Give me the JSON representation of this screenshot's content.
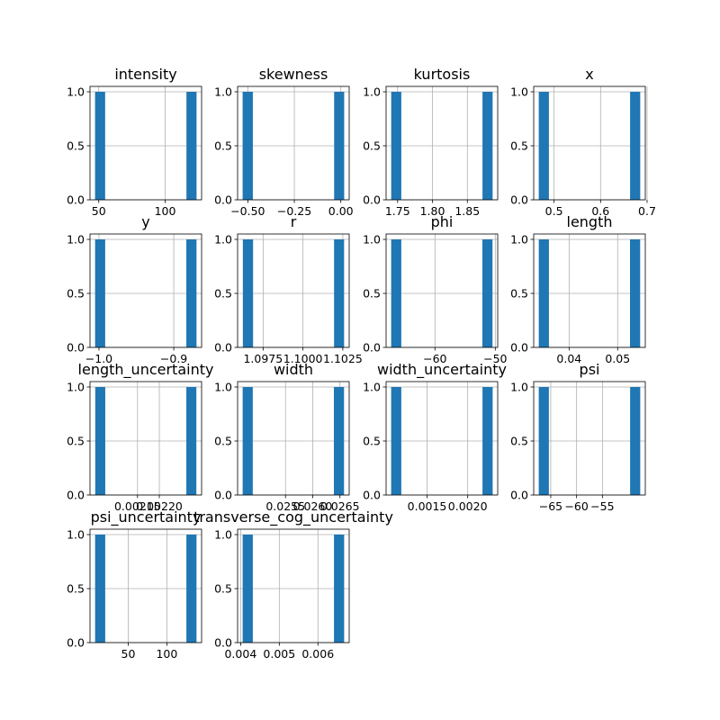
{
  "figure": {
    "background": "#ffffff",
    "bar_color": "#1f77b4",
    "grid_color": "#b0b0b0"
  },
  "chart_data": [
    {
      "type": "bar",
      "title": "intensity",
      "grid": true,
      "xlim": [
        43.4,
        127.4
      ],
      "ylim": [
        0,
        1.05
      ],
      "x_ticks": [
        {
          "value": 50,
          "label": "50"
        },
        {
          "value": 100,
          "label": "100"
        }
      ],
      "y_ticks": [
        {
          "value": 0,
          "label": "0.0"
        },
        {
          "value": 0.5,
          "label": "0.5"
        },
        {
          "value": 1,
          "label": "1.0"
        }
      ],
      "bins": [
        {
          "x0": 47.2,
          "x1": 54.8,
          "count": 1
        },
        {
          "x0": 116.0,
          "x1": 123.6,
          "count": 1
        }
      ]
    },
    {
      "type": "bar",
      "title": "skewness",
      "grid": true,
      "xlim": [
        -0.555,
        0.045
      ],
      "ylim": [
        0,
        1.05
      ],
      "x_ticks": [
        {
          "value": -0.5,
          "label": "−0.50"
        },
        {
          "value": -0.25,
          "label": "−0.25"
        },
        {
          "value": 0,
          "label": "0.00"
        }
      ],
      "y_ticks": [
        {
          "value": 0,
          "label": "0.0"
        },
        {
          "value": 0.5,
          "label": "0.5"
        },
        {
          "value": 1,
          "label": "1.0"
        }
      ],
      "bins": [
        {
          "x0": -0.528,
          "x1": -0.473,
          "count": 1
        },
        {
          "x0": -0.036,
          "x1": 0.018,
          "count": 1
        }
      ]
    },
    {
      "type": "bar",
      "title": "kurtosis",
      "grid": true,
      "xlim": [
        1.7335,
        1.8935
      ],
      "ylim": [
        0,
        1.05
      ],
      "x_ticks": [
        {
          "value": 1.75,
          "label": "1.75"
        },
        {
          "value": 1.8,
          "label": "1.80"
        },
        {
          "value": 1.85,
          "label": "1.85"
        }
      ],
      "y_ticks": [
        {
          "value": 0,
          "label": "0.0"
        },
        {
          "value": 0.5,
          "label": "0.5"
        },
        {
          "value": 1,
          "label": "1.0"
        }
      ],
      "bins": [
        {
          "x0": 1.7408,
          "x1": 1.7553,
          "count": 1
        },
        {
          "x0": 1.8717,
          "x1": 1.8862,
          "count": 1
        }
      ]
    },
    {
      "type": "bar",
      "title": "x",
      "grid": true,
      "xlim": [
        0.4562,
        0.6962
      ],
      "ylim": [
        0,
        1.05
      ],
      "x_ticks": [
        {
          "value": 0.5,
          "label": "0.5"
        },
        {
          "value": 0.6,
          "label": "0.6"
        },
        {
          "value": 0.7,
          "label": "0.7"
        }
      ],
      "y_ticks": [
        {
          "value": 0,
          "label": "0.0"
        },
        {
          "value": 0.5,
          "label": "0.5"
        },
        {
          "value": 1,
          "label": "1.0"
        }
      ],
      "bins": [
        {
          "x0": 0.4671,
          "x1": 0.4889,
          "count": 1
        },
        {
          "x0": 0.6635,
          "x1": 0.6853,
          "count": 1
        }
      ]
    },
    {
      "type": "bar",
      "title": "y",
      "grid": true,
      "xlim": [
        -1.012,
        -0.8628
      ],
      "ylim": [
        0,
        1.05
      ],
      "x_ticks": [
        {
          "value": -1.0,
          "label": "−1.0"
        },
        {
          "value": -0.9,
          "label": "−0.9"
        }
      ],
      "y_ticks": [
        {
          "value": 0,
          "label": "0.0"
        },
        {
          "value": 0.5,
          "label": "0.5"
        },
        {
          "value": 1,
          "label": "1.0"
        }
      ],
      "bins": [
        {
          "x0": -1.0052,
          "x1": -0.9917,
          "count": 1
        },
        {
          "x0": -0.8832,
          "x1": -0.8696,
          "count": 1
        }
      ]
    },
    {
      "type": "bar",
      "title": "r",
      "grid": true,
      "xlim": [
        1.0959,
        1.1029
      ],
      "ylim": [
        0,
        1.05
      ],
      "x_ticks": [
        {
          "value": 1.0975,
          "label": "1.0975"
        },
        {
          "value": 1.1,
          "label": "1.1000"
        },
        {
          "value": 1.1025,
          "label": "1.1025"
        }
      ],
      "y_ticks": [
        {
          "value": 0,
          "label": "0.0"
        },
        {
          "value": 0.5,
          "label": "0.5"
        },
        {
          "value": 1,
          "label": "1.0"
        }
      ],
      "bins": [
        {
          "x0": 1.09623,
          "x1": 1.09687,
          "count": 1
        },
        {
          "x0": 1.10195,
          "x1": 1.10258,
          "count": 1
        }
      ]
    },
    {
      "type": "bar",
      "title": "phi",
      "grid": true,
      "xlim": [
        -68.1,
        -49.6
      ],
      "ylim": [
        0,
        1.05
      ],
      "x_ticks": [
        {
          "value": -60,
          "label": "−60"
        },
        {
          "value": -50,
          "label": "−50"
        }
      ],
      "y_ticks": [
        {
          "value": 0,
          "label": "0.0"
        },
        {
          "value": 0.5,
          "label": "0.5"
        },
        {
          "value": 1,
          "label": "1.0"
        }
      ],
      "bins": [
        {
          "x0": -67.26,
          "x1": -65.58,
          "count": 1
        },
        {
          "x0": -52.14,
          "x1": -50.46,
          "count": 1
        }
      ]
    },
    {
      "type": "bar",
      "title": "length",
      "grid": true,
      "xlim": [
        0.0327,
        0.0557
      ],
      "ylim": [
        0,
        1.05
      ],
      "x_ticks": [
        {
          "value": 0.04,
          "label": "0.04"
        },
        {
          "value": 0.05,
          "label": "0.05"
        }
      ],
      "y_ticks": [
        {
          "value": 0,
          "label": "0.0"
        },
        {
          "value": 0.5,
          "label": "0.5"
        },
        {
          "value": 1,
          "label": "1.0"
        }
      ],
      "bins": [
        {
          "x0": 0.03375,
          "x1": 0.03584,
          "count": 1
        },
        {
          "x0": 0.05255,
          "x1": 0.05464,
          "count": 1
        }
      ]
    },
    {
      "type": "bar",
      "title": "length_uncertainty",
      "grid": true,
      "xlim": [
        0.002041,
        0.002297
      ],
      "ylim": [
        0,
        1.05
      ],
      "x_ticks": [
        {
          "value": 0.00215,
          "label": "0.00215"
        },
        {
          "value": 0.0022,
          "label": "0.00220"
        }
      ],
      "y_ticks": [
        {
          "value": 0,
          "label": "0.0"
        },
        {
          "value": 0.5,
          "label": "0.5"
        },
        {
          "value": 1,
          "label": "1.0"
        }
      ],
      "bins": [
        {
          "x0": 0.002053,
          "x1": 0.002076,
          "count": 1
        },
        {
          "x0": 0.002262,
          "x1": 0.002285,
          "count": 1
        }
      ]
    },
    {
      "type": "bar",
      "title": "width",
      "grid": true,
      "xlim": [
        0.02462,
        0.02667
      ],
      "ylim": [
        0,
        1.05
      ],
      "x_ticks": [
        {
          "value": 0.0255,
          "label": "0.0255"
        },
        {
          "value": 0.026,
          "label": "0.0260"
        },
        {
          "value": 0.0265,
          "label": "0.0265"
        }
      ],
      "y_ticks": [
        {
          "value": 0,
          "label": "0.0"
        },
        {
          "value": 0.5,
          "label": "0.5"
        },
        {
          "value": 1,
          "label": "1.0"
        }
      ],
      "bins": [
        {
          "x0": 0.024713,
          "x1": 0.024899,
          "count": 1
        },
        {
          "x0": 0.026389,
          "x1": 0.026575,
          "count": 1
        }
      ]
    },
    {
      "type": "bar",
      "title": "width_uncertainty",
      "grid": true,
      "xlim": [
        0.000996,
        0.002369
      ],
      "ylim": [
        0,
        1.05
      ],
      "x_ticks": [
        {
          "value": 0.0015,
          "label": "0.0015"
        },
        {
          "value": 0.002,
          "label": "0.0020"
        }
      ],
      "y_ticks": [
        {
          "value": 0,
          "label": "0.0"
        },
        {
          "value": 0.5,
          "label": "0.5"
        },
        {
          "value": 1,
          "label": "1.0"
        }
      ],
      "bins": [
        {
          "x0": 0.001058,
          "x1": 0.001183,
          "count": 1
        },
        {
          "x0": 0.002182,
          "x1": 0.002307,
          "count": 1
        }
      ]
    },
    {
      "type": "bar",
      "title": "psi",
      "grid": true,
      "xlim": [
        -68.3,
        -46.7
      ],
      "ylim": [
        0,
        1.05
      ],
      "x_ticks": [
        {
          "value": -65,
          "label": "−65"
        },
        {
          "value": -60,
          "label": "−60"
        },
        {
          "value": -55,
          "label": "−55"
        }
      ],
      "y_ticks": [
        {
          "value": 0,
          "label": "0.0"
        },
        {
          "value": 0.5,
          "label": "0.5"
        },
        {
          "value": 1,
          "label": "1.0"
        }
      ],
      "bins": [
        {
          "x0": -67.32,
          "x1": -65.36,
          "count": 1
        },
        {
          "x0": -49.64,
          "x1": -47.68,
          "count": 1
        }
      ]
    },
    {
      "type": "bar",
      "title": "psi_uncertainty",
      "grid": true,
      "xlim": [
        0.5,
        145.0
      ],
      "ylim": [
        0,
        1.05
      ],
      "x_ticks": [
        {
          "value": 50,
          "label": "50"
        },
        {
          "value": 100,
          "label": "100"
        }
      ],
      "y_ticks": [
        {
          "value": 0,
          "label": "0.0"
        },
        {
          "value": 0.5,
          "label": "0.5"
        },
        {
          "value": 1,
          "label": "1.0"
        }
      ],
      "bins": [
        {
          "x0": 7.1,
          "x1": 20.2,
          "count": 1
        },
        {
          "x0": 125.3,
          "x1": 138.4,
          "count": 1
        }
      ]
    },
    {
      "type": "bar",
      "title": "transverse_cog_uncertainty",
      "grid": true,
      "xlim": [
        0.003921,
        0.006809
      ],
      "ylim": [
        0,
        1.05
      ],
      "x_ticks": [
        {
          "value": 0.004,
          "label": "0.004"
        },
        {
          "value": 0.005,
          "label": "0.005"
        },
        {
          "value": 0.006,
          "label": "0.006"
        }
      ],
      "y_ticks": [
        {
          "value": 0,
          "label": "0.0"
        },
        {
          "value": 0.5,
          "label": "0.5"
        },
        {
          "value": 1,
          "label": "1.0"
        }
      ],
      "bins": [
        {
          "x0": 0.004052,
          "x1": 0.004315,
          "count": 1
        },
        {
          "x0": 0.006415,
          "x1": 0.006678,
          "count": 1
        }
      ]
    }
  ]
}
